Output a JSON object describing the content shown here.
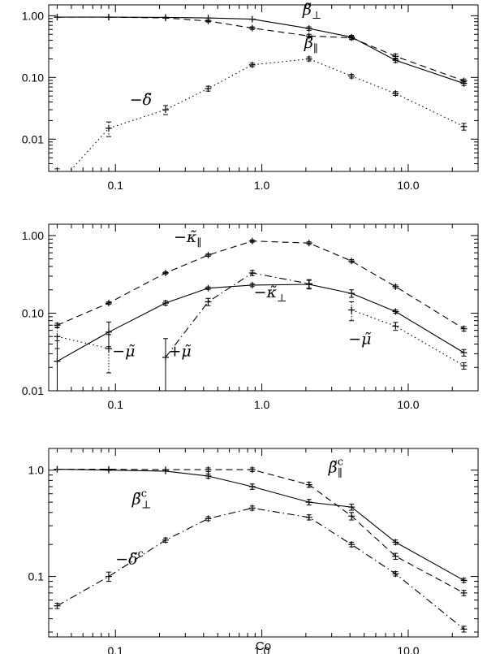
{
  "chart_data": [
    {
      "type": "line",
      "xscale": "log",
      "yscale": "log",
      "xlim": [
        0.035,
        30
      ],
      "ylim": [
        0.003,
        1.5
      ],
      "xticks": [
        0.1,
        1.0,
        10.0
      ],
      "xtick_labels": [
        "0.1",
        "1.0",
        "10.0"
      ],
      "yticks": [
        0.01,
        0.1,
        1.0
      ],
      "ytick_labels": [
        "0.01",
        "0.10",
        "1.00"
      ],
      "xlabel": "",
      "series": [
        {
          "name": "β̃⊥",
          "line": "solid",
          "x": [
            0.04,
            0.09,
            0.22,
            0.43,
            0.86,
            2.1,
            4.1,
            8.2,
            24.0
          ],
          "y": [
            0.95,
            0.95,
            0.94,
            0.92,
            0.88,
            0.62,
            0.45,
            0.19,
            0.08
          ],
          "err": [
            0,
            0,
            0,
            0,
            0,
            0.04,
            0.03,
            0.015,
            0.006
          ]
        },
        {
          "name": "β̃∥",
          "line": "dashed",
          "x": [
            0.04,
            0.09,
            0.22,
            0.43,
            0.86,
            2.1,
            4.1,
            8.2,
            24.0
          ],
          "y": [
            0.95,
            0.95,
            0.92,
            0.82,
            0.63,
            0.47,
            0.44,
            0.22,
            0.088
          ],
          "err": [
            0,
            0,
            0,
            0.03,
            0.03,
            0.03,
            0.03,
            0.02,
            0.006
          ]
        },
        {
          "name": "−δ̃",
          "line": "dotted",
          "x": [
            0.04,
            0.09,
            0.22,
            0.43,
            0.86,
            2.1,
            4.1,
            8.2,
            24.0
          ],
          "y": [
            0.0018,
            0.015,
            0.03,
            0.066,
            0.16,
            0.2,
            0.105,
            0.055,
            0.016
          ],
          "err": [
            0.0015,
            0.004,
            0.005,
            0.006,
            0.01,
            0.015,
            0.007,
            0.004,
            0.002
          ]
        }
      ],
      "annotations": [
        {
          "base": "β̃",
          "sub": "⊥",
          "sup": "",
          "x": 1.9,
          "y": 1.05
        },
        {
          "base": "β̃",
          "sub": "∥",
          "sup": "",
          "x": 1.95,
          "y": 0.3
        },
        {
          "base": "−δ̃",
          "sub": "",
          "sup": "",
          "x": 0.125,
          "y": 0.036
        }
      ]
    },
    {
      "type": "line",
      "xscale": "log",
      "yscale": "log",
      "xlim": [
        0.035,
        30
      ],
      "ylim": [
        0.01,
        1.4
      ],
      "xticks": [
        0.1,
        1.0,
        10.0
      ],
      "xtick_labels": [
        "0.1",
        "1.0",
        "10.0"
      ],
      "yticks": [
        0.01,
        0.1,
        1.0
      ],
      "ytick_labels": [
        "0.01",
        "0.10",
        "1.00"
      ],
      "xlabel": "",
      "series": [
        {
          "name": "−κ̃∥",
          "line": "dashed",
          "x": [
            0.04,
            0.09,
            0.22,
            0.43,
            0.86,
            2.1,
            4.1,
            8.2,
            24.0
          ],
          "y": [
            0.07,
            0.135,
            0.33,
            0.56,
            0.85,
            0.8,
            0.47,
            0.22,
            0.063
          ],
          "err": [
            0.004,
            0.005,
            0.01,
            0.02,
            0.03,
            0.03,
            0.02,
            0.01,
            0.004
          ]
        },
        {
          "name": "−κ̃⊥",
          "line": "solid",
          "x": [
            0.04,
            0.09,
            0.22,
            0.43,
            0.86,
            2.1,
            4.1,
            8.2,
            24.0
          ],
          "y": [
            0.024,
            0.057,
            0.135,
            0.21,
            0.23,
            0.235,
            0.18,
            0.105,
            0.031
          ],
          "err": [
            0.02,
            0.02,
            0.008,
            0.008,
            0.01,
            0.03,
            0.02,
            0.005,
            0.003
          ]
        },
        {
          "name": "+μ̃",
          "line": "dashdot",
          "x": [
            0.22,
            0.43,
            0.86,
            2.1
          ],
          "y": [
            0.027,
            0.14,
            0.33,
            0.24
          ],
          "err": [
            0.02,
            0.015,
            0.025,
            0.03
          ]
        },
        {
          "name": "−μ̃",
          "line": "dotted",
          "x": [
            0.04,
            0.09
          ],
          "y": [
            0.05,
            0.035
          ],
          "err": [
            0.015,
            0.018
          ]
        },
        {
          "name": "−μ̃ ",
          "line": "dotted",
          "x": [
            4.1,
            8.2,
            24.0
          ],
          "y": [
            0.11,
            0.068,
            0.021
          ],
          "err": [
            0.03,
            0.008,
            0.002
          ]
        }
      ],
      "annotations": [
        {
          "base": "−κ̃",
          "sub": "∥",
          "sup": "",
          "x": 0.25,
          "y": 0.82
        },
        {
          "base": "−κ̃",
          "sub": "⊥",
          "sup": "",
          "x": 0.88,
          "y": 0.16
        },
        {
          "base": "−μ̃",
          "sub": "",
          "sup": "",
          "x": 0.095,
          "y": 0.028
        },
        {
          "base": "+μ̃",
          "sub": "",
          "sup": "",
          "x": 0.23,
          "y": 0.028
        },
        {
          "base": "−μ̃",
          "sub": "",
          "sup": "",
          "x": 3.9,
          "y": 0.04
        }
      ]
    },
    {
      "type": "line",
      "xscale": "log",
      "yscale": "log",
      "xlim": [
        0.035,
        30
      ],
      "ylim": [
        0.027,
        1.6
      ],
      "xticks": [
        0.1,
        1.0,
        10.0
      ],
      "xtick_labels": [
        "0.1",
        "1.0",
        "10.0"
      ],
      "yticks": [
        0.1,
        1.0
      ],
      "ytick_labels": [
        "0.1",
        "1.0"
      ],
      "xlabel": "Co",
      "series": [
        {
          "name": "β̃c⊥",
          "line": "solid",
          "x": [
            0.04,
            0.09,
            0.22,
            0.43,
            0.86,
            2.1,
            4.1,
            8.2,
            24.0
          ],
          "y": [
            1.02,
            1.0,
            0.98,
            0.88,
            0.7,
            0.5,
            0.45,
            0.21,
            0.092
          ],
          "err": [
            0,
            0,
            0,
            0.04,
            0.04,
            0.03,
            0.03,
            0.01,
            0.004
          ]
        },
        {
          "name": "β̃c∥",
          "line": "dashed",
          "x": [
            0.04,
            0.09,
            0.22,
            0.43,
            0.86,
            2.1,
            4.1,
            8.2,
            24.0
          ],
          "y": [
            1.02,
            1.02,
            1.01,
            1.01,
            1.01,
            0.73,
            0.37,
            0.155,
            0.07
          ],
          "err": [
            0,
            0,
            0,
            0.04,
            0.04,
            0.04,
            0.03,
            0.01,
            0.004
          ]
        },
        {
          "name": "−δ̃c",
          "line": "dashdot",
          "x": [
            0.04,
            0.09,
            0.22,
            0.43,
            0.86,
            2.1,
            4.1,
            8.2,
            24.0
          ],
          "y": [
            0.053,
            0.1,
            0.22,
            0.35,
            0.44,
            0.36,
            0.2,
            0.106,
            0.032
          ],
          "err": [
            0.003,
            0.01,
            0.01,
            0.015,
            0.02,
            0.02,
            0.01,
            0.005,
            0.002
          ]
        }
      ],
      "annotations": [
        {
          "base": "β̃",
          "sub": "⊥",
          "sup": "c",
          "x": 0.13,
          "y": 0.48
        },
        {
          "base": "β̃",
          "sub": "∥",
          "sup": "c",
          "x": 2.85,
          "y": 0.95
        },
        {
          "base": "−δ̃",
          "sub": "",
          "sup": "c",
          "x": 0.1,
          "y": 0.13
        }
      ]
    }
  ]
}
